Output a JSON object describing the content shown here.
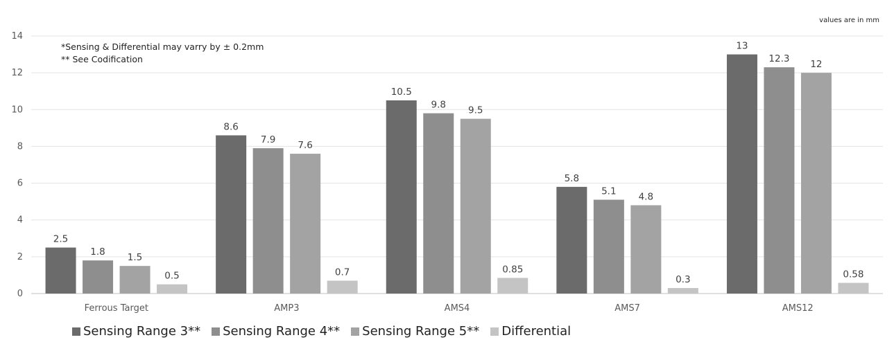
{
  "chart_data": {
    "type": "bar",
    "title": "",
    "xlabel": "",
    "ylabel": "",
    "ylim": [
      0,
      14
    ],
    "yticks": [
      0,
      2,
      4,
      6,
      8,
      10,
      12,
      14
    ],
    "grid": true,
    "legend_position": "bottom-left",
    "categories": [
      "Ferrous Target",
      "AMP3",
      "AMS4",
      "AMS7",
      "AMS12"
    ],
    "series": [
      {
        "name": "Sensing Range 3**",
        "color": "#6b6b6b",
        "values": [
          2.5,
          8.6,
          10.5,
          5.8,
          13
        ],
        "labels": [
          "2.5",
          "8.6",
          "10.5",
          "5.8",
          "13"
        ]
      },
      {
        "name": "Sensing Range 4**",
        "color": "#8e8e8e",
        "values": [
          1.8,
          7.9,
          9.8,
          5.1,
          12.3
        ],
        "labels": [
          "1.8",
          "7.9",
          "9.8",
          "5.1",
          "12.3"
        ]
      },
      {
        "name": "Sensing Range 5**",
        "color": "#a3a3a3",
        "values": [
          1.5,
          7.6,
          9.5,
          4.8,
          12
        ],
        "labels": [
          "1.5",
          "7.6",
          "9.5",
          "4.8",
          "12"
        ]
      },
      {
        "name": "Differential",
        "color": "#c4c4c4",
        "values": [
          0.5,
          0.7,
          0.85,
          0.3,
          0.58
        ],
        "labels": [
          "0.5",
          "0.7",
          "0.85",
          "0.3",
          "0.58"
        ]
      }
    ],
    "notes": [
      "*Sensing & Differential may varry by ± 0.2mm",
      "** See Codification"
    ],
    "units_note": "values are in mm"
  }
}
